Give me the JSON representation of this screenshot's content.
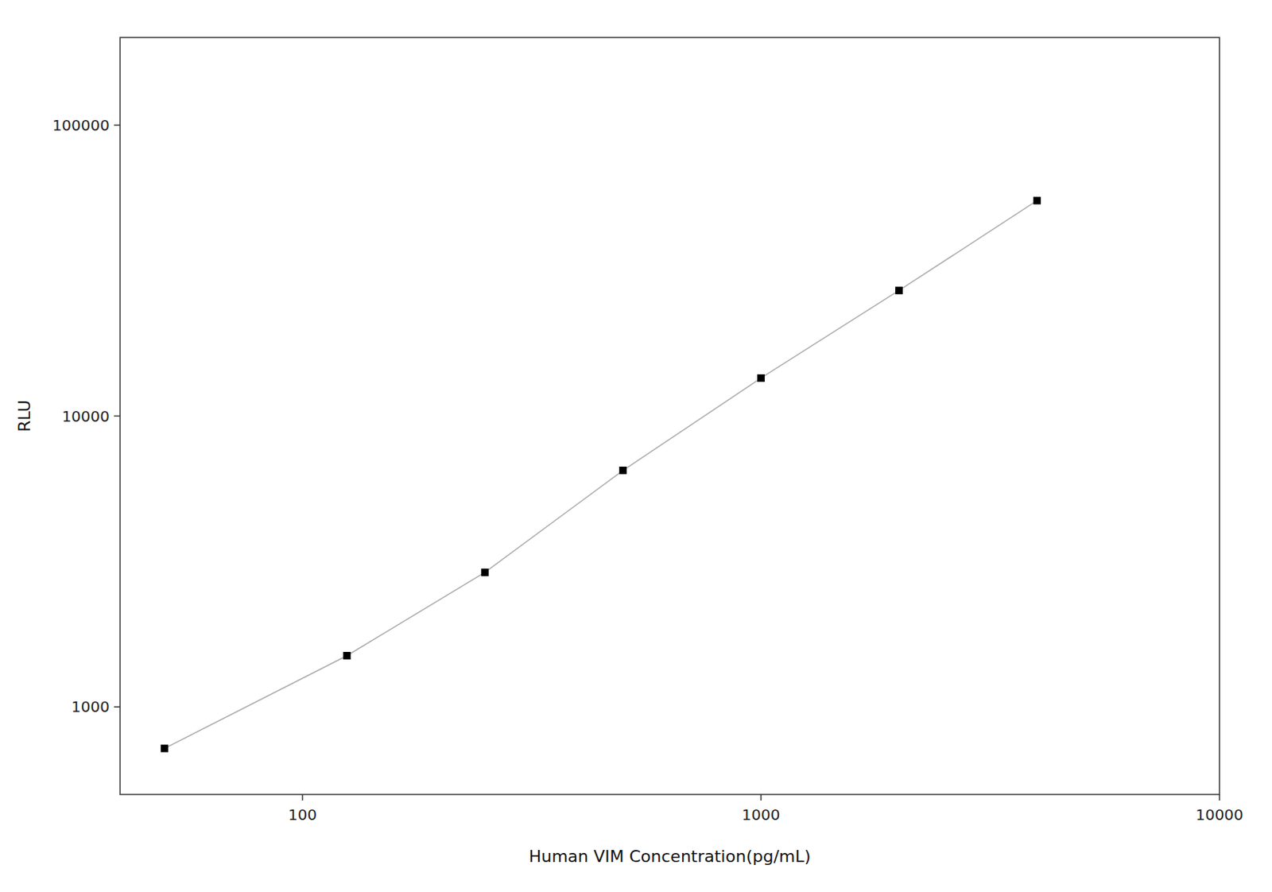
{
  "chart_data": {
    "type": "line",
    "log": true,
    "grid": false,
    "xlabel": "Human VIM Concentration(pg/mL)",
    "ylabel": "RLU",
    "x": [
      50,
      125,
      250,
      500,
      1000,
      2000,
      4000
    ],
    "series": [
      {
        "type": "line",
        "color": "#aaaaaa",
        "line_style": "solid",
        "values": [
          720,
          1500,
          2900,
          6500,
          13500,
          27000,
          55000
        ]
      },
      {
        "type": "scatter",
        "color": "#000000",
        "marker": "square",
        "values": [
          720,
          1500,
          2900,
          6500,
          13500,
          27000,
          55000
        ]
      }
    ],
    "xlim": [
      40,
      10000
    ],
    "ylim": [
      500,
      200000
    ],
    "xticks": [
      100,
      1000,
      10000
    ],
    "yticks": [
      1000,
      10000,
      100000
    ]
  }
}
